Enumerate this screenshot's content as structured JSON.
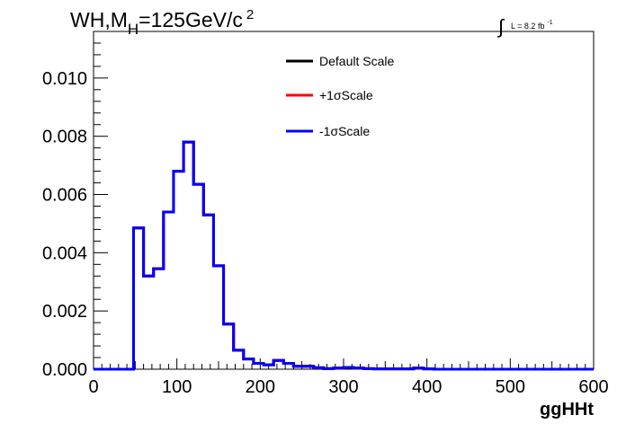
{
  "chart_data": {
    "type": "line",
    "title": {
      "prefix": "WH,M",
      "subscript": "H",
      "middle": "=125GeV/c",
      "superscript": "2"
    },
    "luminosity": {
      "symbol": "∫",
      "text": "L = 8.2 fb",
      "superscript": "-1"
    },
    "xlabel": "ggHHt",
    "ylabel": "",
    "xlim": [
      0,
      600
    ],
    "ylim": [
      0,
      0.0116
    ],
    "xticks": [
      0,
      100,
      200,
      300,
      400,
      500,
      600
    ],
    "xtick_labels": [
      "0",
      "100",
      "200",
      "300",
      "400",
      "500",
      "600"
    ],
    "yticks": [
      0,
      0.002,
      0.004,
      0.006,
      0.008,
      0.01
    ],
    "ytick_labels": [
      "0.000",
      "0.002",
      "0.004",
      "0.006",
      "0.008",
      "0.010"
    ],
    "grid": false,
    "legend_position": "top-right",
    "bin_width": 12,
    "bin_edges_start": 0,
    "series": [
      {
        "name": "Default Scale",
        "color": "#000000",
        "values": [
          0,
          0,
          0,
          0,
          0.00485,
          0.0032,
          0.00345,
          0.0054,
          0.0068,
          0.0078,
          0.00635,
          0.0053,
          0.00355,
          0.00155,
          0.00065,
          0.00035,
          0.0002,
          0.00015,
          0.0003,
          0.0002,
          0.0001,
          0.0001,
          5e-05,
          2e-05,
          4e-05,
          6e-05,
          4e-05,
          2e-05,
          1e-05,
          1e-05,
          1e-05,
          1e-05,
          4e-05,
          1e-05,
          0,
          0,
          0,
          0,
          0,
          0,
          0,
          0,
          0,
          0,
          0,
          0,
          0,
          0,
          0,
          0
        ]
      },
      {
        "name": "+1σScale",
        "color": "#ff0000",
        "values": [
          0,
          0,
          0,
          0,
          0.00485,
          0.0032,
          0.00345,
          0.0054,
          0.0068,
          0.0078,
          0.00635,
          0.0053,
          0.00355,
          0.00155,
          0.00065,
          0.00035,
          0.0002,
          0.00015,
          0.0003,
          0.0002,
          0.0001,
          0.0001,
          5e-05,
          2e-05,
          4e-05,
          6e-05,
          4e-05,
          2e-05,
          1e-05,
          1e-05,
          1e-05,
          1e-05,
          4e-05,
          1e-05,
          0,
          0,
          0,
          0,
          0,
          0,
          0,
          0,
          0,
          0,
          0,
          0,
          0,
          0,
          0,
          0
        ]
      },
      {
        "name": "-1σScale",
        "color": "#0000ff",
        "values": [
          0,
          0,
          0,
          0,
          0.00485,
          0.0032,
          0.00345,
          0.0054,
          0.0068,
          0.0078,
          0.00635,
          0.0053,
          0.00355,
          0.00155,
          0.00065,
          0.00035,
          0.0002,
          0.00015,
          0.0003,
          0.0002,
          0.0001,
          0.0001,
          5e-05,
          2e-05,
          4e-05,
          6e-05,
          4e-05,
          2e-05,
          1e-05,
          1e-05,
          1e-05,
          1e-05,
          4e-05,
          1e-05,
          0,
          0,
          0,
          0,
          0,
          0,
          0,
          0,
          0,
          0,
          0,
          0,
          0,
          0,
          0,
          0
        ]
      }
    ]
  }
}
